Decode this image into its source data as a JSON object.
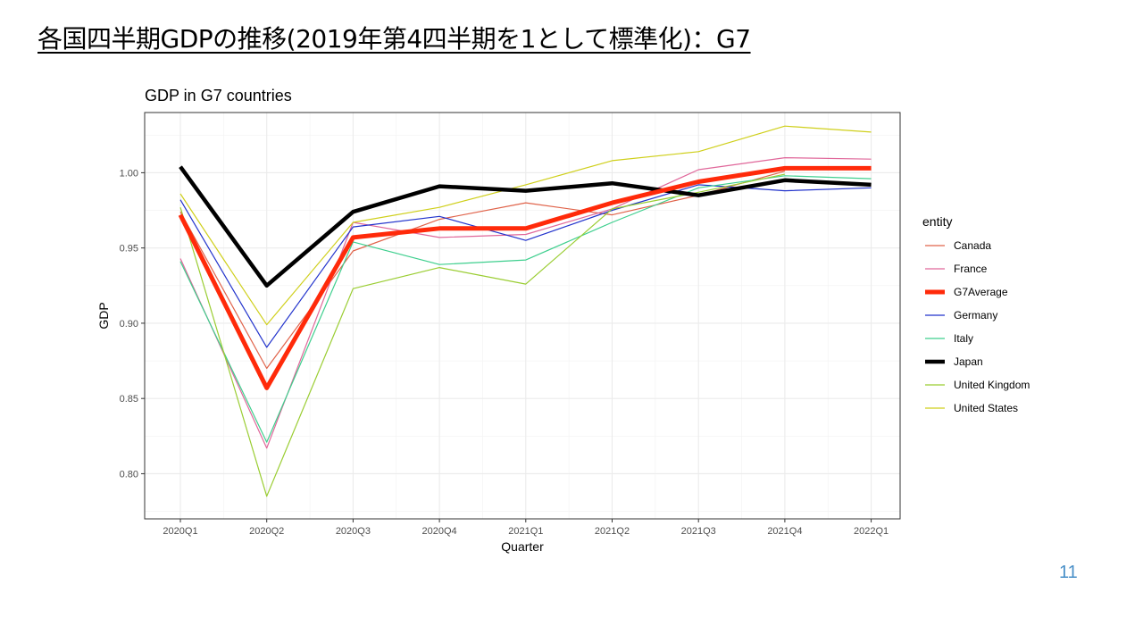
{
  "slide": {
    "title": "各国四半期GDPの推移(2019年第4四半期を1として標準化)：G7",
    "page_number": "11"
  },
  "chart_data": {
    "type": "line",
    "title": "GDP in G7 countries",
    "xlabel": "Quarter",
    "ylabel": "GDP",
    "ylim": [
      0.77,
      1.04
    ],
    "yticks": [
      0.8,
      0.85,
      0.9,
      0.95,
      1.0
    ],
    "ytick_labels": [
      "0.80",
      "0.85",
      "0.90",
      "0.95",
      "1.00"
    ],
    "grid": true,
    "legend_title": "entity",
    "legend_position": "right",
    "categories": [
      "2020Q1",
      "2020Q2",
      "2020Q3",
      "2020Q4",
      "2021Q1",
      "2021Q2",
      "2021Q3",
      "2021Q4",
      "2022Q1"
    ],
    "series": [
      {
        "name": "Canada",
        "color": "#e0634a",
        "width": 1.2,
        "values": [
          0.974,
          0.87,
          0.948,
          0.969,
          0.98,
          0.972,
          0.985,
          1.001,
          null
        ]
      },
      {
        "name": "France",
        "color": "#e0679a",
        "width": 1.2,
        "values": [
          0.943,
          0.817,
          0.967,
          0.957,
          0.959,
          0.976,
          1.002,
          1.01,
          1.009
        ]
      },
      {
        "name": "G7Average",
        "color": "#ff2a0a",
        "width": 5,
        "values": [
          0.972,
          0.857,
          0.957,
          0.963,
          0.963,
          0.98,
          0.994,
          1.003,
          1.003
        ]
      },
      {
        "name": "Germany",
        "color": "#2233cc",
        "width": 1.2,
        "values": [
          0.982,
          0.884,
          0.964,
          0.971,
          0.955,
          0.975,
          0.992,
          0.988,
          0.99
        ]
      },
      {
        "name": "Italy",
        "color": "#3ecf8e",
        "width": 1.2,
        "values": [
          0.941,
          0.821,
          0.954,
          0.939,
          0.942,
          0.967,
          0.99,
          0.998,
          0.996
        ]
      },
      {
        "name": "Japan",
        "color": "#000000",
        "width": 4.5,
        "values": [
          1.004,
          0.925,
          0.974,
          0.991,
          0.988,
          0.993,
          0.985,
          0.995,
          0.992
        ]
      },
      {
        "name": "United Kingdom",
        "color": "#9acd32",
        "width": 1.2,
        "values": [
          0.977,
          0.785,
          0.923,
          0.937,
          0.926,
          0.976,
          0.987,
          0.999,
          null
        ]
      },
      {
        "name": "United States",
        "color": "#cfcf1a",
        "width": 1.2,
        "values": [
          0.986,
          0.899,
          0.967,
          0.977,
          0.992,
          1.008,
          1.014,
          1.031,
          1.027
        ]
      }
    ]
  }
}
